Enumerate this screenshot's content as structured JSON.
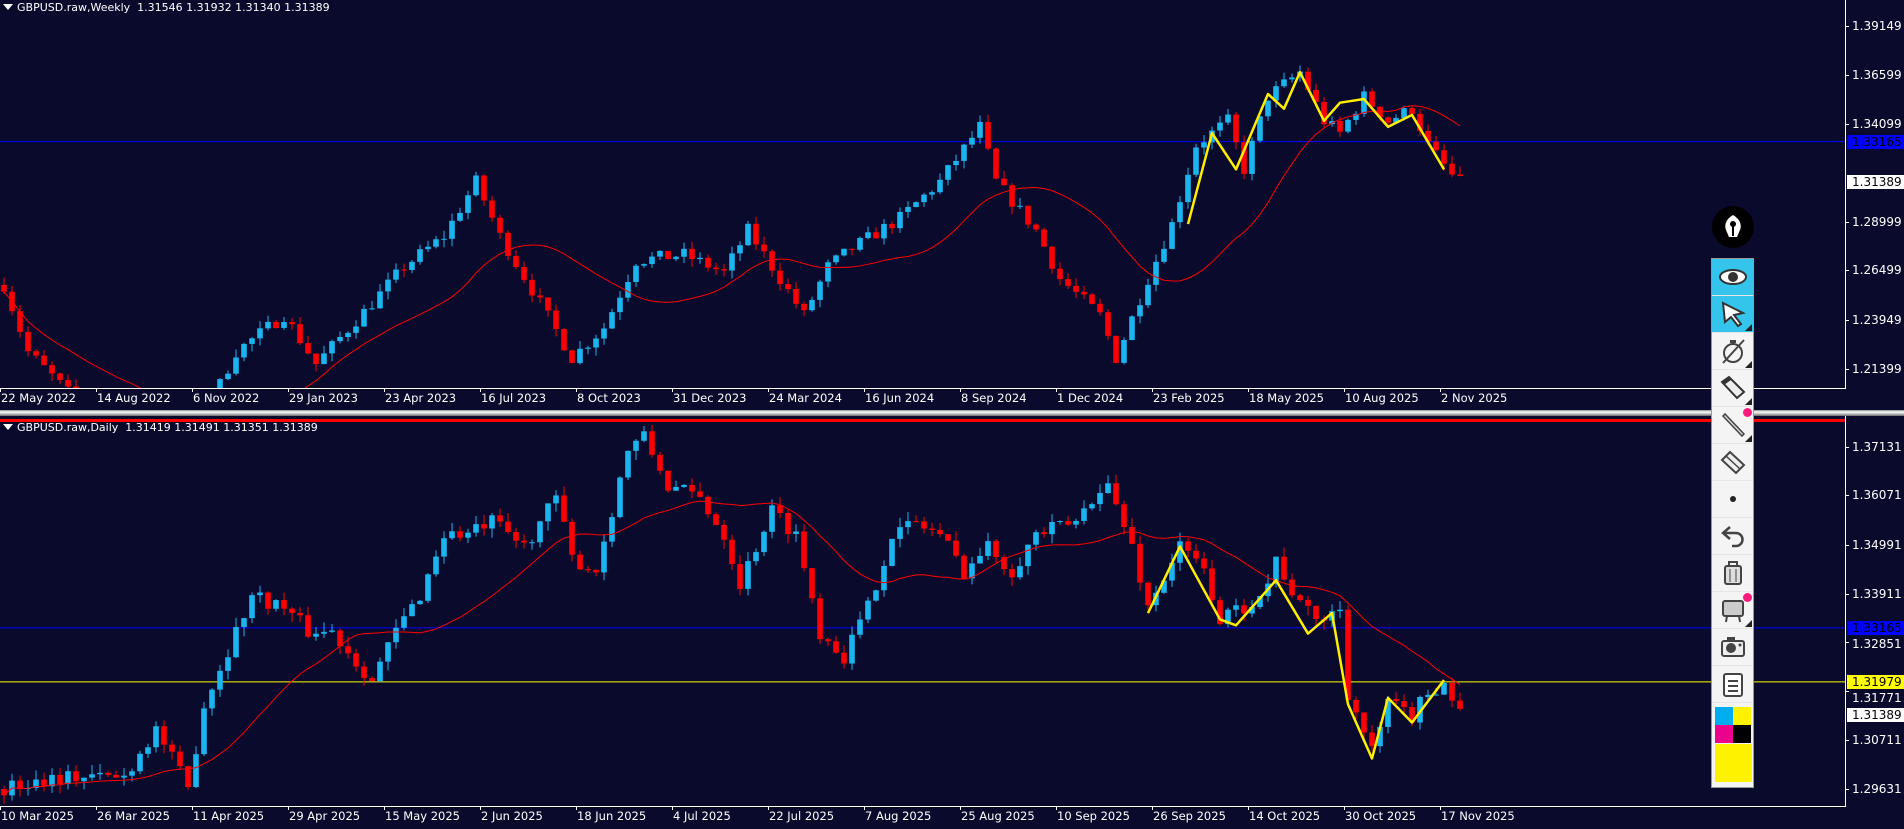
{
  "colors": {
    "background": "#0a0a2c",
    "bull": "#1ab4ee",
    "bear": "#ff0000",
    "ma": "#ff0000",
    "drawing": "#ffee00",
    "blue_level": "#0000ff",
    "yellow_level": "#ffff00"
  },
  "weekly": {
    "symbol": "GBPUSD.raw,Weekly",
    "ohlc_text": "1.31546 1.31932 1.31340 1.31389",
    "price_labels": [
      "1.39149",
      "1.36599",
      "1.34099",
      "1.28999",
      "1.26499",
      "1.23949",
      "1.21399"
    ],
    "price_values": [
      1.39149,
      1.36599,
      1.34099,
      1.28999,
      1.26499,
      1.23949,
      1.21399
    ],
    "blue_level": {
      "label": "1.33165",
      "value": 1.33165
    },
    "last_price": {
      "label": "1.31389",
      "value": 1.31389
    },
    "date_labels": [
      "22 May 2022",
      "14 Aug 2022",
      "6 Nov 2022",
      "29 Jan 2023",
      "23 Apr 2023",
      "16 Jul 2023",
      "8 Oct 2023",
      "31 Dec 2023",
      "24 Mar 2024",
      "16 Jun 2024",
      "8 Sep 2024",
      "1 Dec 2024",
      "23 Feb 2025",
      "18 May 2025",
      "10 Aug 2025",
      "2 Nov 2025"
    ],
    "price_path": [
      [
        0,
        1.2575
      ],
      [
        3,
        1.2229
      ],
      [
        9,
        1.1978
      ],
      [
        15,
        1.1789
      ],
      [
        21,
        1.1537
      ],
      [
        26,
        1.1978
      ],
      [
        29,
        1.2229
      ],
      [
        35,
        1.2418
      ],
      [
        39,
        1.2166
      ],
      [
        46,
        1.2481
      ],
      [
        50,
        1.267
      ],
      [
        55,
        1.2827
      ],
      [
        59,
        1.311
      ],
      [
        62,
        1.2827
      ],
      [
        67,
        1.2481
      ],
      [
        71,
        1.2198
      ],
      [
        75,
        1.2355
      ],
      [
        79,
        1.2701
      ],
      [
        85,
        1.2732
      ],
      [
        90,
        1.2638
      ],
      [
        93,
        1.2858
      ],
      [
        97,
        1.2607
      ],
      [
        100,
        1.2418
      ],
      [
        103,
        1.267
      ],
      [
        106,
        1.2764
      ],
      [
        112,
        1.2921
      ],
      [
        117,
        1.311
      ],
      [
        122,
        1.3393
      ],
      [
        124,
        1.311
      ],
      [
        129,
        1.2858
      ],
      [
        132,
        1.2607
      ],
      [
        137,
        1.2418
      ],
      [
        139,
        1.2198
      ],
      [
        143,
        1.2607
      ],
      [
        146,
        1.289
      ],
      [
        149,
        1.3299
      ],
      [
        153,
        1.3424
      ],
      [
        155,
        1.3173
      ],
      [
        158,
        1.355
      ],
      [
        162,
        1.3676
      ],
      [
        165,
        1.3424
      ],
      [
        167,
        1.3361
      ],
      [
        170,
        1.355
      ],
      [
        173,
        1.3424
      ],
      [
        176,
        1.3487
      ],
      [
        178,
        1.3299
      ],
      [
        181,
        1.3141
      ],
      [
        182,
        1.3139
      ]
    ],
    "zigzag": [
      [
        148,
        1.289
      ],
      [
        151,
        1.3361
      ],
      [
        154,
        1.3173
      ],
      [
        158,
        1.3563
      ],
      [
        160,
        1.3487
      ],
      [
        162,
        1.3676
      ],
      [
        165,
        1.3424
      ],
      [
        167,
        1.3518
      ],
      [
        170,
        1.3537
      ],
      [
        173,
        1.3393
      ],
      [
        176,
        1.3455
      ],
      [
        180,
        1.3173
      ]
    ]
  },
  "daily": {
    "symbol": "GBPUSD.raw,Daily",
    "ohlc_text": "1.31419 1.31491 1.31351 1.31389",
    "price_labels": [
      "1.37131",
      "1.36071",
      "1.34991",
      "1.33911",
      "1.32851",
      "1.31771",
      "1.30711",
      "1.29631"
    ],
    "price_values": [
      1.37131,
      1.36071,
      1.34991,
      1.33911,
      1.32851,
      1.31771,
      1.30711,
      1.29631
    ],
    "blue_level": {
      "label": "1.33165",
      "value": 1.33165
    },
    "yellow_level": {
      "label": "1.31979",
      "value": 1.31979
    },
    "last_price": {
      "label": "1.31389",
      "value": 1.31389
    },
    "date_labels": [
      "10 Mar 2025",
      "26 Mar 2025",
      "11 Apr 2025",
      "29 Apr 2025",
      "15 May 2025",
      "2 Jun 2025",
      "18 Jun 2025",
      "4 Jul 2025",
      "22 Jul 2025",
      "7 Aug 2025",
      "25 Aug 2025",
      "10 Sep 2025",
      "26 Sep 2025",
      "14 Oct 2025",
      "30 Oct 2025",
      "17 Nov 2025"
    ],
    "price_path": [
      [
        0,
        1.2963
      ],
      [
        6,
        1.299
      ],
      [
        15,
        1.299
      ],
      [
        19,
        1.3096
      ],
      [
        23,
        1.2963
      ],
      [
        25,
        1.3149
      ],
      [
        29,
        1.3309
      ],
      [
        31,
        1.3389
      ],
      [
        35,
        1.3362
      ],
      [
        38,
        1.3309
      ],
      [
        41,
        1.3309
      ],
      [
        46,
        1.3202
      ],
      [
        49,
        1.3309
      ],
      [
        52,
        1.3389
      ],
      [
        55,
        1.3522
      ],
      [
        58,
        1.3522
      ],
      [
        61,
        1.3548
      ],
      [
        65,
        1.3495
      ],
      [
        69,
        1.3601
      ],
      [
        71,
        1.3468
      ],
      [
        74,
        1.3442
      ],
      [
        76,
        1.3575
      ],
      [
        78,
        1.3708
      ],
      [
        80,
        1.3734
      ],
      [
        83,
        1.3628
      ],
      [
        87,
        1.3601
      ],
      [
        90,
        1.3522
      ],
      [
        92,
        1.3415
      ],
      [
        96,
        1.3575
      ],
      [
        99,
        1.3522
      ],
      [
        102,
        1.3309
      ],
      [
        105,
        1.3255
      ],
      [
        108,
        1.3362
      ],
      [
        111,
        1.3522
      ],
      [
        114,
        1.3548
      ],
      [
        117,
        1.3522
      ],
      [
        120,
        1.3442
      ],
      [
        123,
        1.3495
      ],
      [
        126,
        1.3442
      ],
      [
        129,
        1.3522
      ],
      [
        134,
        1.3548
      ],
      [
        137,
        1.3628
      ],
      [
        138,
        1.3628
      ],
      [
        141,
        1.3495
      ],
      [
        143,
        1.3362
      ],
      [
        147,
        1.3495
      ],
      [
        150,
        1.3442
      ],
      [
        152,
        1.3335
      ],
      [
        155,
        1.3362
      ],
      [
        158,
        1.3415
      ],
      [
        159,
        1.3468
      ],
      [
        162,
        1.3362
      ],
      [
        165,
        1.3335
      ],
      [
        167,
        1.3362
      ],
      [
        168,
        1.3176
      ],
      [
        171,
        1.3043
      ],
      [
        173,
        1.3149
      ],
      [
        176,
        1.3123
      ],
      [
        178,
        1.3176
      ],
      [
        180,
        1.3197
      ],
      [
        182,
        1.3139
      ]
    ],
    "zigzag": [
      [
        143,
        1.3349
      ],
      [
        147,
        1.3495
      ],
      [
        152,
        1.3335
      ],
      [
        154,
        1.3322
      ],
      [
        159,
        1.3421
      ],
      [
        163,
        1.3304
      ],
      [
        166,
        1.3349
      ],
      [
        168,
        1.3149
      ],
      [
        171,
        1.303
      ],
      [
        173,
        1.3163
      ],
      [
        176,
        1.3109
      ],
      [
        180,
        1.3202
      ]
    ]
  },
  "toolbar": {
    "items": [
      "eye",
      "cursor",
      "stopwatch",
      "pencil-eraser",
      "line",
      "eraser",
      "dot",
      "undo",
      "trash",
      "easel",
      "camera",
      "clipboard"
    ],
    "palette": [
      "#00aeef",
      "#fff200",
      "#ec008c",
      "#000000",
      "#fff200"
    ]
  }
}
